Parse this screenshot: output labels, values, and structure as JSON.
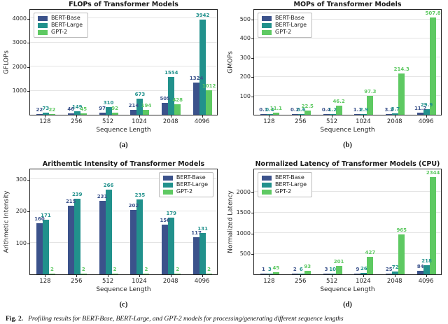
{
  "figure_caption": {
    "prefix": "Fig. 2.",
    "text": "Profiling results for BERT-Base, BERT-Large, and GPT-2 models for processing/generating different sequence lengths"
  },
  "chart_data": [
    {
      "type": "bar",
      "title": "FLOPs of Transformer Models",
      "ylabel": "GFLOPs",
      "xlabel": "Sequence Length",
      "panel_label": "(a)",
      "legend_position": "top-left",
      "grid": true,
      "ylim": [
        0,
        4400
      ],
      "yticks": [
        1000,
        2000,
        3000,
        4000
      ],
      "categories": [
        "128",
        "256",
        "512",
        "1024",
        "2048",
        "4096"
      ],
      "series": [
        {
          "name": "BERT-Base",
          "color": "#3b528b",
          "values": [
            22,
            46,
            97,
            214,
            505,
            1324
          ],
          "labels": [
            "22",
            "46",
            "97",
            "214",
            "505",
            "1324"
          ]
        },
        {
          "name": "BERT-Large",
          "color": "#21918c",
          "values": [
            73,
            149,
            310,
            673,
            1554,
            3942
          ],
          "labels": [
            "73",
            "149",
            "310",
            "673",
            "1554",
            "3942"
          ]
        },
        {
          "name": "GPT-2",
          "color": "#5ec962",
          "values": [
            22,
            45,
            92,
            194,
            428,
            1012
          ],
          "labels": [
            "22",
            "45",
            "92",
            "194",
            "428",
            "1012"
          ]
        }
      ]
    },
    {
      "type": "bar",
      "title": "MOPs of Transformer Models",
      "ylabel": "GMOPs",
      "xlabel": "Sequence Length",
      "panel_label": "(b)",
      "legend_position": "top-left",
      "grid": true,
      "ylim": [
        0,
        555
      ],
      "yticks": [
        100,
        200,
        300,
        400,
        500
      ],
      "categories": [
        "128",
        "256",
        "512",
        "1024",
        "2048",
        "4096"
      ],
      "series": [
        {
          "name": "BERT-Base",
          "color": "#3b528b",
          "values": [
            0.1,
            0.2,
            0.4,
            1.1,
            3.2,
            11.2
          ],
          "labels": [
            "0.1",
            "0.2",
            "0.4",
            "1.1",
            "3.2",
            "11.2"
          ]
        },
        {
          "name": "BERT-Large",
          "color": "#21918c",
          "values": [
            0.4,
            0.6,
            1.2,
            2.9,
            8.7,
            29.9
          ],
          "labels": [
            "0.4",
            "0.6",
            "1.2",
            "2.9",
            "8.7",
            "29.9"
          ]
        },
        {
          "name": "GPT-2",
          "color": "#5ec962",
          "values": [
            11.1,
            22.5,
            46.2,
            97.3,
            214.3,
            507.8
          ],
          "labels": [
            "11.1",
            "22.5",
            "46.2",
            "97.3",
            "214.3",
            "507.8"
          ]
        }
      ]
    },
    {
      "type": "bar",
      "title": "Arithemtic Intensity of Transformer Models",
      "ylabel": "Arithmetic Intensity",
      "xlabel": "Sequence Length",
      "panel_label": "(c)",
      "legend_position": "top-right",
      "grid": true,
      "ylim": [
        0,
        335
      ],
      "yticks": [
        100,
        200,
        300
      ],
      "categories": [
        "128",
        "256",
        "512",
        "1024",
        "2048",
        "4096"
      ],
      "series": [
        {
          "name": "BERT-Base",
          "color": "#3b528b",
          "values": [
            160,
            215,
            231,
            202,
            156,
            117
          ],
          "labels": [
            "160",
            "215",
            "231",
            "202",
            "156",
            "117"
          ]
        },
        {
          "name": "BERT-Large",
          "color": "#21918c",
          "values": [
            171,
            239,
            266,
            235,
            179,
            131
          ],
          "labels": [
            "171",
            "239",
            "266",
            "235",
            "179",
            "131"
          ]
        },
        {
          "name": "GPT-2",
          "color": "#5ec962",
          "values": [
            2,
            2,
            2,
            2,
            2,
            2
          ],
          "labels": [
            "2",
            "2",
            "2",
            "2",
            "2",
            "2"
          ]
        }
      ]
    },
    {
      "type": "bar",
      "title": "Normalized Latency of Transformer Models (CPU)",
      "ylabel": "Normalized Latency",
      "xlabel": "Sequence Length",
      "panel_label": "(d)",
      "legend_position": "top-left",
      "grid": true,
      "ylim": [
        0,
        2570
      ],
      "yticks": [
        500,
        1000,
        1500,
        2000
      ],
      "categories": [
        "128",
        "256",
        "512",
        "1024",
        "2048",
        "4096"
      ],
      "series": [
        {
          "name": "BERT-Base",
          "color": "#3b528b",
          "values": [
            1,
            2,
            3,
            9,
            25,
            84
          ],
          "labels": [
            "1",
            "2",
            "3",
            "9",
            "25",
            "84"
          ]
        },
        {
          "name": "BERT-Large",
          "color": "#21918c",
          "values": [
            3,
            6,
            10,
            26,
            72,
            218
          ],
          "labels": [
            "3",
            "6",
            "10",
            "26",
            "72",
            "218"
          ]
        },
        {
          "name": "GPT-2",
          "color": "#5ec962",
          "values": [
            45,
            93,
            201,
            427,
            965,
            2344
          ],
          "labels": [
            "45",
            "93",
            "201",
            "427",
            "965",
            "2344"
          ]
        }
      ]
    }
  ]
}
